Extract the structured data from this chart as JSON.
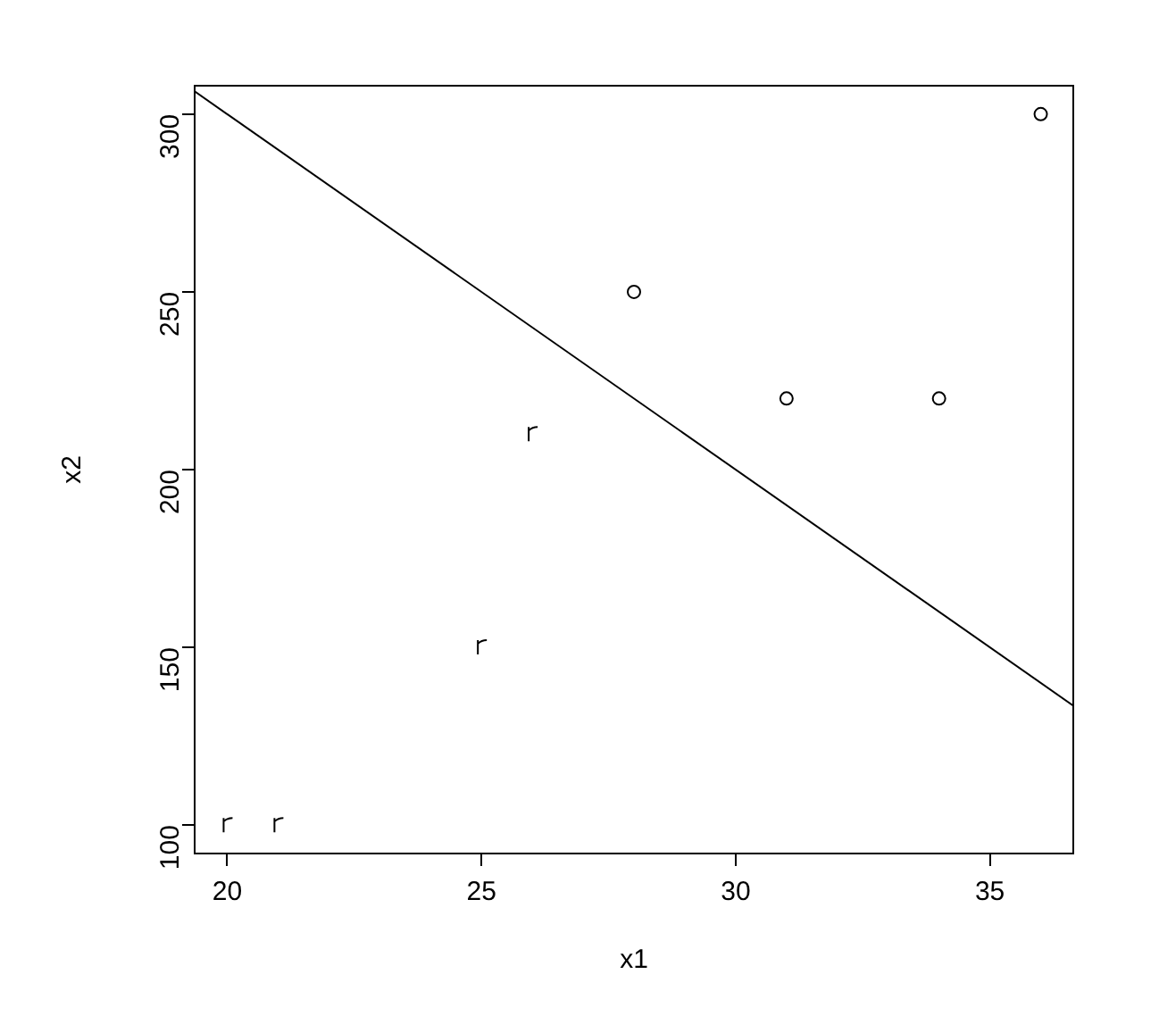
{
  "chart_data": {
    "type": "scatter",
    "xlabel": "x1",
    "ylabel": "x2",
    "xlim": [
      19.36,
      36.64
    ],
    "ylim": [
      92,
      308
    ],
    "xticks": [
      20,
      25,
      30,
      35
    ],
    "yticks": [
      100,
      150,
      200,
      250,
      300
    ],
    "grid": false,
    "legend": false,
    "series": [
      {
        "color": "#000000",
        "x": [
          20,
          21,
          25,
          26
        ],
        "values": [
          100,
          100,
          150,
          210
        ]
      },
      {
        "marker": "circle",
        "color": "#000000",
        "x": [
          28,
          31,
          34,
          36
        ],
        "values": [
          250,
          220,
          220,
          300
        ]
      },
      {
        "type": "line",
        "marker": "none",
        "color": "#000000",
        "x": [
          19.36,
          36.64
        ],
        "values": [
          306.4,
          133.6
        ]
      }
    ]
  }
}
